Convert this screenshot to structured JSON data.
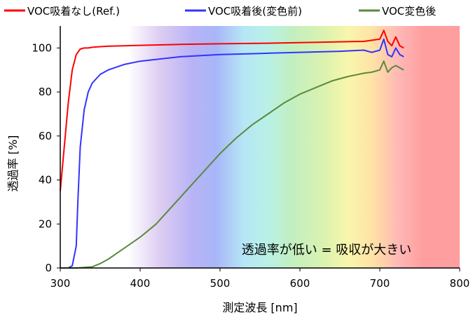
{
  "chart_data": {
    "type": "line",
    "title": "",
    "xlabel": "測定波長 [nm]",
    "ylabel": "透過率 [%]",
    "xlim": [
      300,
      800
    ],
    "ylim": [
      0,
      110
    ],
    "x_ticks": [
      300,
      400,
      500,
      600,
      700,
      800
    ],
    "y_ticks": [
      0,
      20,
      40,
      60,
      80,
      100
    ],
    "grid": false,
    "legend_position": "top",
    "background": "visible-spectrum gradient (violet to red)",
    "annotation": "透過率が低い = 吸収が大きい",
    "series": [
      {
        "name": "VOC吸着なし(Ref.)",
        "color": "#ff0000",
        "x": [
          300,
          305,
          310,
          315,
          320,
          325,
          330,
          335,
          340,
          350,
          360,
          380,
          400,
          450,
          500,
          550,
          600,
          650,
          680,
          690,
          700,
          705,
          710,
          715,
          720,
          725,
          730
        ],
        "y": [
          35,
          55,
          75,
          90,
          97,
          99.5,
          100,
          100,
          100.3,
          100.6,
          100.8,
          101,
          101.2,
          101.6,
          101.9,
          102.1,
          102.4,
          102.8,
          103,
          103.5,
          104,
          108,
          103,
          101,
          105,
          101,
          100
        ]
      },
      {
        "name": "VOC吸着後(変色前)",
        "color": "#3333ff",
        "x": [
          300,
          310,
          315,
          320,
          322,
          325,
          330,
          335,
          340,
          350,
          360,
          380,
          400,
          450,
          500,
          550,
          600,
          650,
          680,
          690,
          700,
          705,
          710,
          715,
          720,
          725,
          730
        ],
        "y": [
          0,
          0,
          1,
          10,
          30,
          55,
          72,
          80,
          84,
          88,
          90,
          92.5,
          94,
          96,
          97,
          97.5,
          98,
          98.5,
          99,
          98,
          99,
          104,
          97,
          96,
          100,
          97,
          96
        ]
      },
      {
        "name": "VOC変色後",
        "color": "#5a8a3a",
        "x": [
          300,
          320,
          340,
          350,
          360,
          380,
          400,
          420,
          440,
          460,
          480,
          500,
          520,
          540,
          560,
          580,
          600,
          620,
          640,
          660,
          680,
          690,
          700,
          705,
          710,
          715,
          720,
          725,
          730
        ],
        "y": [
          0,
          0,
          0.5,
          2,
          4,
          9,
          14,
          20,
          28,
          36,
          44,
          52,
          59,
          65,
          70,
          75,
          79,
          82,
          85,
          87,
          88.5,
          89,
          90,
          94,
          89,
          91,
          92,
          91,
          90
        ]
      }
    ]
  }
}
